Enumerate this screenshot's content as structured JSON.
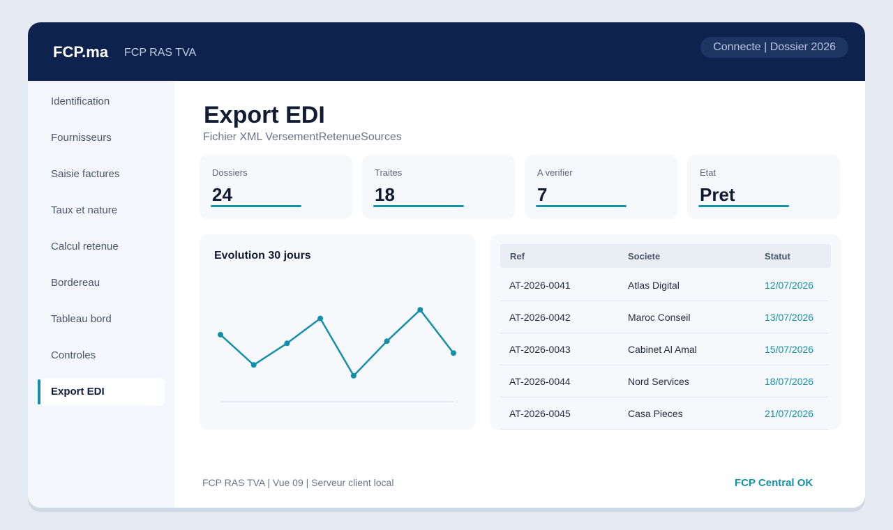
{
  "header": {
    "brand": "FCP.ma",
    "subtitle": "FCP RAS TVA",
    "status": "Connecte | Dossier 2026"
  },
  "sidebar": {
    "items": [
      {
        "label": "Identification"
      },
      {
        "label": "Fournisseurs"
      },
      {
        "label": "Saisie factures"
      },
      {
        "label": "Taux et nature"
      },
      {
        "label": "Calcul retenue"
      },
      {
        "label": "Bordereau"
      },
      {
        "label": "Tableau bord"
      },
      {
        "label": "Controles"
      },
      {
        "label": "Export EDI",
        "active": true
      }
    ]
  },
  "main": {
    "title": "Export EDI",
    "subtitle": "Fichier XML VersementRetenueSources",
    "kpis": [
      {
        "label": "Dossiers",
        "value": "24"
      },
      {
        "label": "Traites",
        "value": "18"
      },
      {
        "label": "A verifier",
        "value": "7"
      },
      {
        "label": "Etat",
        "value": "Pret"
      }
    ],
    "chart": {
      "title": "Evolution 30 jours"
    },
    "table": {
      "columns": [
        "Ref",
        "Societe",
        "Statut"
      ],
      "rows": [
        {
          "ref": "AT-2026-0041",
          "societe": "Atlas Digital",
          "statut": "12/07/2026"
        },
        {
          "ref": "AT-2026-0042",
          "societe": "Maroc Conseil",
          "statut": "13/07/2026"
        },
        {
          "ref": "AT-2026-0043",
          "societe": "Cabinet Al Amal",
          "statut": "15/07/2026"
        },
        {
          "ref": "AT-2026-0044",
          "societe": "Nord Services",
          "statut": "18/07/2026"
        },
        {
          "ref": "AT-2026-0045",
          "societe": "Casa Pieces",
          "statut": "21/07/2026"
        }
      ]
    }
  },
  "footer": {
    "left": "FCP RAS TVA | Vue 09 | Serveur client local",
    "right": "FCP Central OK"
  },
  "chart_data": {
    "type": "line",
    "x": [
      1,
      2,
      3,
      4,
      5,
      6,
      7,
      8
    ],
    "values": [
      62,
      34,
      54,
      77,
      24,
      56,
      85,
      45
    ],
    "ylim": [
      0,
      100
    ],
    "grid": false,
    "color": "#1390a8"
  },
  "colors": {
    "accent": "#1390a8",
    "topbar": "#0d224c"
  }
}
